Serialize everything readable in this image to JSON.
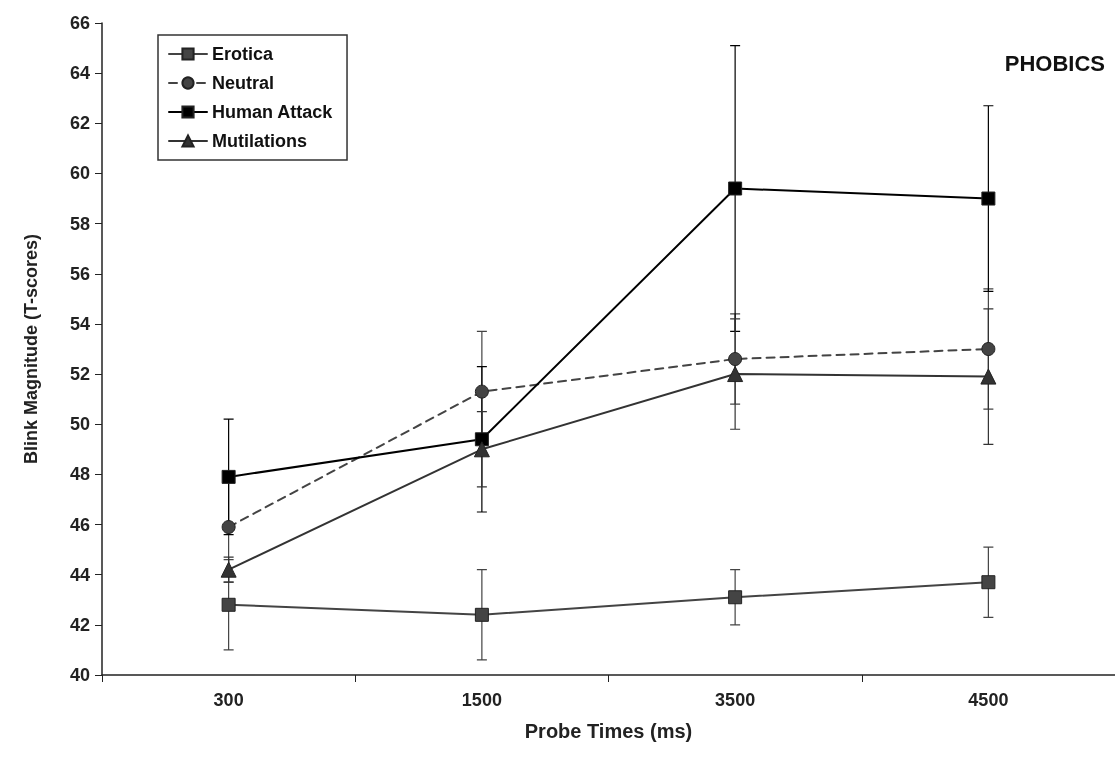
{
  "chart_data": {
    "type": "line",
    "xlabel": "Probe Times (ms)",
    "ylabel": "Blink Magnitude (T-scores)",
    "annotations": [
      "PHOBICS"
    ],
    "categories": [
      "300",
      "1500",
      "3500",
      "4500"
    ],
    "ylim": [
      40,
      66
    ],
    "yticks": [
      40,
      42,
      44,
      46,
      48,
      50,
      52,
      54,
      56,
      58,
      60,
      62,
      64,
      66
    ],
    "grid": false,
    "legend": "top left",
    "line_style": "solid",
    "series": [
      {
        "name": "Erotica",
        "color": "#444444",
        "marker": "square",
        "values": [
          42.8,
          42.4,
          43.1,
          43.7
        ],
        "errors": [
          1.8,
          1.8,
          1.1,
          1.4
        ]
      },
      {
        "name": "Neutral",
        "color": "#444444",
        "marker": "circle",
        "line_style": "dashed",
        "values": [
          45.9,
          51.3,
          52.6,
          53.0
        ],
        "errors": [
          2.2,
          2.4,
          1.8,
          2.4
        ]
      },
      {
        "name": "Human Attack",
        "color": "#000000",
        "marker": "square",
        "values": [
          47.9,
          49.4,
          59.4,
          59.0
        ],
        "errors": [
          2.3,
          2.9,
          5.7,
          3.7
        ]
      },
      {
        "name": "Mutilations",
        "color": "#333333",
        "marker": "triangle",
        "values": [
          44.2,
          49.0,
          52.0,
          51.9
        ],
        "errors": [
          0.5,
          1.5,
          2.2,
          2.7
        ]
      }
    ]
  }
}
